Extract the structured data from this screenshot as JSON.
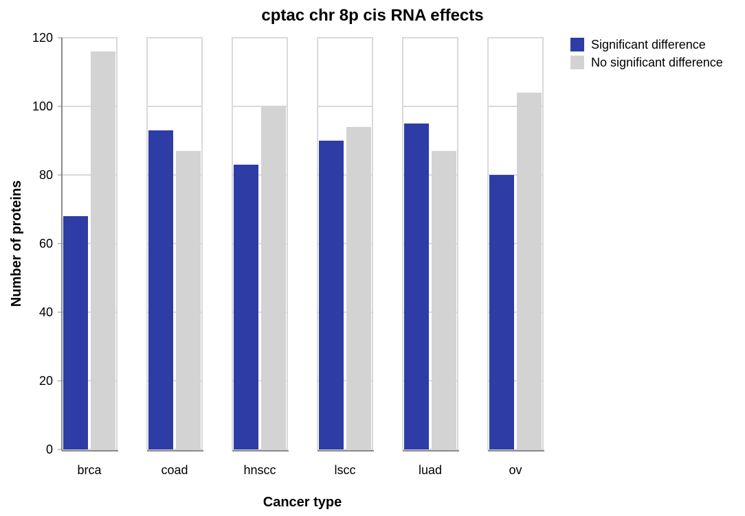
{
  "chart_data": {
    "type": "bar",
    "title": "cptac chr 8p cis RNA effects",
    "xlabel": "Cancer type",
    "ylabel": "Number of proteins",
    "categories": [
      "brca",
      "coad",
      "hnscc",
      "lscc",
      "luad",
      "ov"
    ],
    "series": [
      {
        "name": "Significant difference",
        "color": "#2e3ca5",
        "values": [
          68,
          93,
          83,
          90,
          95,
          80
        ]
      },
      {
        "name": "No significant difference",
        "color": "#d3d3d3",
        "values": [
          116,
          87,
          100,
          94,
          87,
          104
        ]
      }
    ],
    "ylim": [
      0,
      120
    ],
    "yticks": [
      0,
      20,
      40,
      60,
      80,
      100,
      120
    ],
    "grid": true,
    "legend_position": "top-right"
  }
}
